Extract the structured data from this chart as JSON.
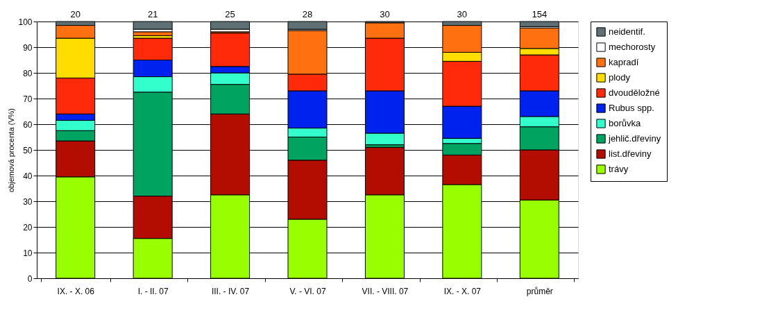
{
  "chart_data": {
    "type": "bar",
    "stacked": true,
    "ylabel": "objemová procenta (V%)",
    "categories": [
      "IX. - X. 06",
      "I. - II. 07",
      "III. - IV. 07",
      "V. - VI. 07",
      "VII. - VIII. 07",
      "IX. - X. 07",
      "průměr"
    ],
    "series": [
      {
        "name": "trávy",
        "color": "#99ff00",
        "values": [
          39.5,
          15.5,
          32.5,
          23,
          32.5,
          36.5,
          30.5
        ]
      },
      {
        "name": "list.dřeviny",
        "color": "#b30c00",
        "values": [
          14,
          16.5,
          31.5,
          23,
          18.5,
          11.5,
          19.5
        ]
      },
      {
        "name": "jehlič.dřeviny",
        "color": "#00a35f",
        "values": [
          4,
          40.5,
          11.5,
          9,
          1,
          4.5,
          9
        ]
      },
      {
        "name": "borůvka",
        "color": "#33ffcc",
        "values": [
          4,
          6,
          4.5,
          3.5,
          4.5,
          2,
          4
        ]
      },
      {
        "name": "Rubus spp.",
        "color": "#0022ee",
        "values": [
          2.5,
          6.5,
          2.5,
          14.5,
          16.5,
          12.5,
          10
        ]
      },
      {
        "name": "dvouděložné",
        "color": "#ff2a0a",
        "values": [
          14,
          8.5,
          13,
          6.5,
          20.5,
          17.5,
          14
        ]
      },
      {
        "name": "plody",
        "color": "#ffdd00",
        "values": [
          15.5,
          1,
          null,
          null,
          null,
          3.5,
          2.5
        ]
      },
      {
        "name": "kapradí",
        "color": "#ff7010",
        "values": [
          5,
          1.5,
          0.5,
          17,
          6,
          10.5,
          8
        ]
      },
      {
        "name": "mechorosty",
        "color": "#ffffff",
        "values": [
          null,
          1,
          1,
          0.5,
          null,
          null,
          0.5
        ]
      },
      {
        "name": "neidentif.",
        "color": "#5f7075",
        "values": [
          1.5,
          3,
          3,
          3,
          0.5,
          1.5,
          2
        ]
      }
    ],
    "annotations": [
      {
        "text": "20",
        "x": "IX. - X. 06",
        "y": 100
      },
      {
        "text": "21",
        "x": "I. - II. 07",
        "y": 100
      },
      {
        "text": "25",
        "x": "III. - IV. 07",
        "y": 100
      },
      {
        "text": "28",
        "x": "V. - VI. 07",
        "y": 100
      },
      {
        "text": "30",
        "x": "VII. - VIII. 07",
        "y": 100
      },
      {
        "text": "30",
        "x": "IX. - X. 07",
        "y": 100
      },
      {
        "text": "154",
        "x": "průměr",
        "y": 100
      }
    ],
    "ylim": [
      0,
      100
    ],
    "yticks": [
      0,
      10,
      20,
      30,
      40,
      50,
      60,
      70,
      80,
      90,
      100
    ],
    "grid": "y",
    "legend": "right"
  }
}
